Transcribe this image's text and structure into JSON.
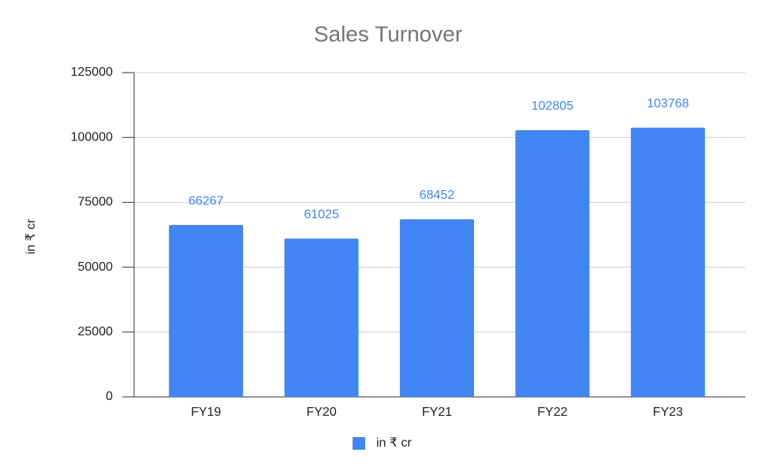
{
  "chart_data": {
    "type": "bar",
    "title": "Sales Turnover",
    "y_label": "in ₹ cr",
    "categories": [
      "FY19",
      "FY20",
      "FY21",
      "FY22",
      "FY23"
    ],
    "series": [
      {
        "name": "in ₹ cr",
        "color": "#4285f4",
        "values": [
          66267,
          61025,
          68452,
          102805,
          103768
        ]
      }
    ],
    "ylim": [
      0,
      125000
    ],
    "yticks": [
      0,
      25000,
      50000,
      75000,
      100000,
      125000
    ],
    "grid": true,
    "legend": "bottom"
  }
}
